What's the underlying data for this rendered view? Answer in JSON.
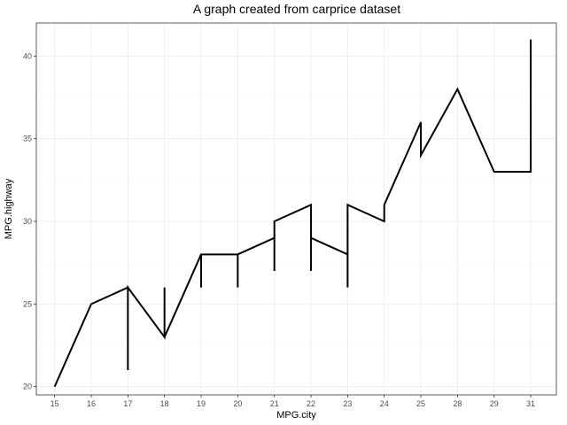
{
  "chart_data": {
    "type": "line",
    "title": "A graph created from carprice dataset",
    "xlabel": "MPG.city",
    "ylabel": "MPG.highway",
    "categories": [
      "15",
      "16",
      "17",
      "18",
      "19",
      "20",
      "21",
      "22",
      "23",
      "24",
      "25",
      "28",
      "29",
      "31"
    ],
    "ylim": [
      19.5,
      42
    ],
    "yticks": [
      20,
      25,
      30,
      35,
      40
    ],
    "grid": true,
    "series": [
      {
        "name": "MPG.highway",
        "color": "#000000",
        "points": [
          {
            "x": "15",
            "y": 20
          },
          {
            "x": "16",
            "y": 25
          },
          {
            "x": "17",
            "y": 26
          },
          {
            "x": "17",
            "y": 21
          },
          {
            "x": "17",
            "y": 26
          },
          {
            "x": "18",
            "y": 23
          },
          {
            "x": "18",
            "y": 26
          },
          {
            "x": "18",
            "y": 23
          },
          {
            "x": "19",
            "y": 28
          },
          {
            "x": "19",
            "y": 26
          },
          {
            "x": "19",
            "y": 28
          },
          {
            "x": "20",
            "y": 28
          },
          {
            "x": "20",
            "y": 26
          },
          {
            "x": "20",
            "y": 28
          },
          {
            "x": "21",
            "y": 29
          },
          {
            "x": "21",
            "y": 27
          },
          {
            "x": "21",
            "y": 30
          },
          {
            "x": "22",
            "y": 31
          },
          {
            "x": "22",
            "y": 27
          },
          {
            "x": "22",
            "y": 29
          },
          {
            "x": "23",
            "y": 28
          },
          {
            "x": "23",
            "y": 26
          },
          {
            "x": "23",
            "y": 31
          },
          {
            "x": "24",
            "y": 30
          },
          {
            "x": "24",
            "y": 31
          },
          {
            "x": "25",
            "y": 36
          },
          {
            "x": "25",
            "y": 34
          },
          {
            "x": "28",
            "y": 38
          },
          {
            "x": "29",
            "y": 33
          },
          {
            "x": "31",
            "y": 33
          },
          {
            "x": "31",
            "y": 41
          }
        ]
      }
    ]
  }
}
